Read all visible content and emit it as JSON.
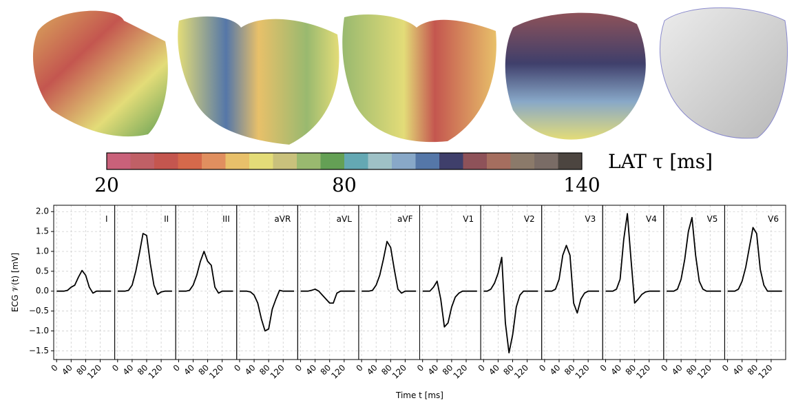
{
  "chart_data": [
    {
      "type": "colorbar",
      "label": "LAT τ [ms]",
      "xlim": [
        20,
        140
      ],
      "xticks": [
        20,
        80,
        140
      ],
      "colors": [
        "#c9617a",
        "#c06066",
        "#c4564f",
        "#d5694b",
        "#e08f5f",
        "#e8c06a",
        "#e3dc78",
        "#c9c17c",
        "#99b96f",
        "#64a055",
        "#64a8b3",
        "#9ec1c6",
        "#88a8c8",
        "#5577a8",
        "#3f3f6b",
        "#8e5259",
        "#a56e5f",
        "#8b7a6a",
        "#7a6c66",
        "#4c4540"
      ]
    },
    {
      "type": "line-panels",
      "xlabel": "Time t [ms]",
      "ylabel": "ECG 𝒱(t) [mV]",
      "color": "#000000",
      "grid": true,
      "xlim": [
        -8,
        160
      ],
      "ylim": [
        -1.72,
        2.16
      ],
      "xticks": [
        0,
        40,
        80,
        120
      ],
      "yticks": [
        {
          "value": -1.5,
          "label": "−1.5"
        },
        {
          "value": -1.0,
          "label": "−1.0"
        },
        {
          "value": -0.5,
          "label": "−0.5"
        },
        {
          "value": 0,
          "label": "0.0"
        },
        {
          "value": 0.5,
          "label": "0.5"
        },
        {
          "value": 1.0,
          "label": "1.0"
        },
        {
          "value": 1.5,
          "label": "1.5"
        },
        {
          "value": 2.0,
          "label": "2.0"
        }
      ],
      "x": [
        0,
        10,
        20,
        30,
        40,
        50,
        60,
        70,
        80,
        90,
        100,
        110,
        120,
        130,
        140,
        150
      ],
      "panels": [
        {
          "title": "I",
          "values": [
            0,
            0,
            0,
            0.02,
            0.1,
            0.15,
            0.35,
            0.52,
            0.4,
            0.1,
            -0.05,
            0,
            0,
            0,
            0,
            0
          ]
        },
        {
          "title": "II",
          "values": [
            0,
            0,
            0,
            0.02,
            0.15,
            0.5,
            0.95,
            1.45,
            1.4,
            0.7,
            0.15,
            -0.08,
            -0.02,
            0,
            0,
            0
          ]
        },
        {
          "title": "III",
          "values": [
            0,
            0,
            0,
            0.02,
            0.15,
            0.4,
            0.75,
            1.0,
            0.75,
            0.65,
            0.1,
            -0.05,
            0,
            0,
            0,
            0
          ]
        },
        {
          "title": "aVR",
          "values": [
            0,
            0,
            0,
            -0.02,
            -0.1,
            -0.3,
            -0.7,
            -1.0,
            -0.95,
            -0.45,
            -0.2,
            0.02,
            0,
            0,
            0,
            0
          ]
        },
        {
          "title": "aVL",
          "values": [
            0,
            0,
            0,
            0.02,
            0.05,
            0,
            -0.1,
            -0.2,
            -0.3,
            -0.3,
            -0.05,
            0,
            0,
            0,
            0,
            0
          ]
        },
        {
          "title": "aVF",
          "values": [
            0,
            0,
            0,
            0.02,
            0.15,
            0.4,
            0.8,
            1.25,
            1.1,
            0.55,
            0.05,
            -0.05,
            0,
            0,
            0,
            0
          ]
        },
        {
          "title": "V1",
          "values": [
            0,
            0,
            0,
            0.1,
            0.25,
            -0.2,
            -0.9,
            -0.8,
            -0.4,
            -0.15,
            -0.05,
            0,
            0,
            0,
            0,
            0
          ]
        },
        {
          "title": "V2",
          "values": [
            0,
            0,
            0.05,
            0.2,
            0.45,
            0.85,
            -0.8,
            -1.55,
            -1.1,
            -0.4,
            -0.1,
            0,
            0,
            0,
            0,
            0
          ]
        },
        {
          "title": "V3",
          "values": [
            0,
            0,
            0,
            0.05,
            0.3,
            0.9,
            1.15,
            0.9,
            -0.3,
            -0.55,
            -0.2,
            -0.05,
            0,
            0,
            0,
            0
          ]
        },
        {
          "title": "V4",
          "values": [
            0,
            0,
            0,
            0.05,
            0.3,
            1.3,
            1.95,
            0.8,
            -0.3,
            -0.2,
            -0.08,
            -0.02,
            0,
            0,
            0,
            0
          ]
        },
        {
          "title": "V5",
          "values": [
            0,
            0,
            0,
            0.05,
            0.3,
            0.8,
            1.5,
            1.85,
            0.9,
            0.25,
            0.05,
            0,
            0,
            0,
            0,
            0
          ]
        },
        {
          "title": "V6",
          "values": [
            0,
            0,
            0,
            0.05,
            0.25,
            0.6,
            1.1,
            1.6,
            1.45,
            0.55,
            0.15,
            0,
            0,
            0,
            0,
            0
          ]
        }
      ]
    }
  ]
}
